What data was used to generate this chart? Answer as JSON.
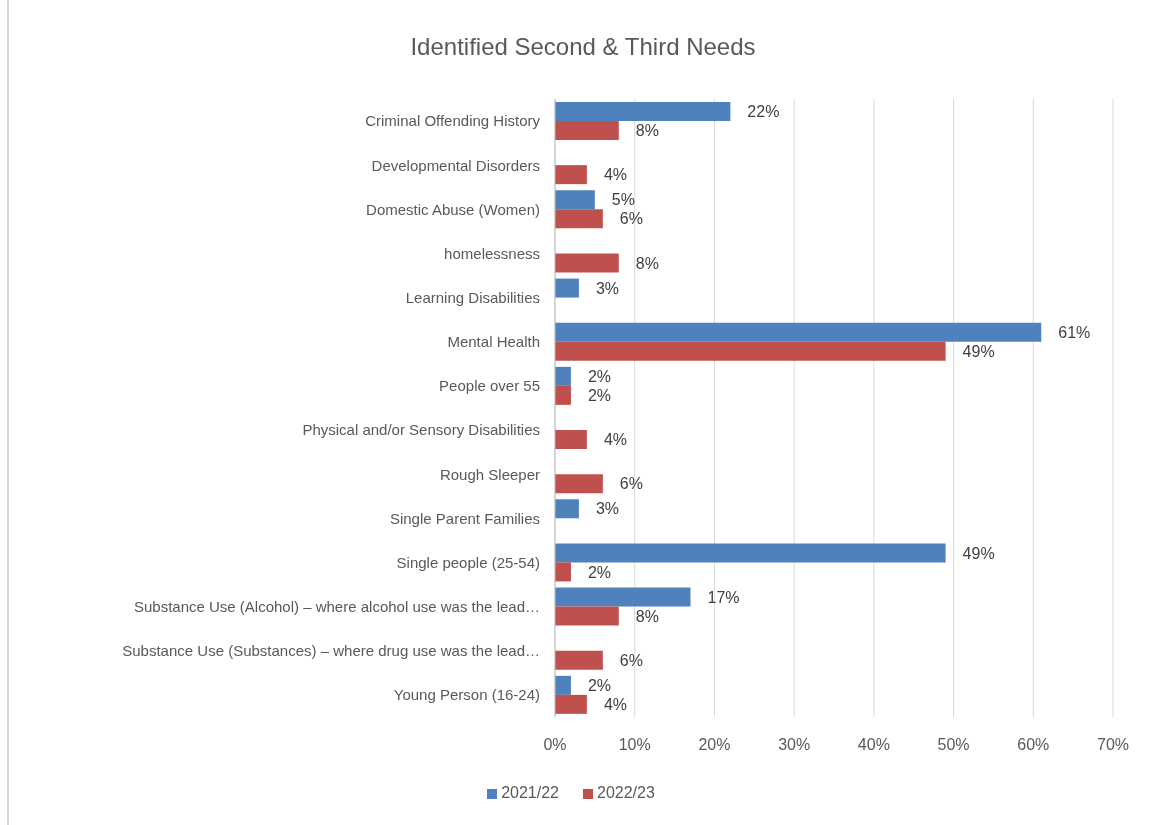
{
  "chart_data": {
    "type": "bar",
    "orientation": "horizontal",
    "title": "Identified Second & Third Needs",
    "categories": [
      "Criminal Offending History",
      "Developmental Disorders",
      "Domestic Abuse (Women)",
      "homelessness",
      "Learning Disabilities",
      "Mental Health",
      "People over 55",
      "Physical and/or Sensory Disabilities",
      "Rough Sleeper",
      "Single Parent Families",
      "Single people (25-54)",
      "Substance Use (Alcohol) – where alcohol use was the lead…",
      "Substance Use (Substances) – where drug use was the lead…",
      "Young Person (16-24)"
    ],
    "series": [
      {
        "name": "2021/22",
        "color": "#4f81bd",
        "values": [
          22,
          null,
          5,
          null,
          3,
          61,
          2,
          null,
          null,
          3,
          49,
          17,
          null,
          2
        ],
        "value_labels": [
          "22%",
          null,
          "5%",
          null,
          "3%",
          "61%",
          "2%",
          null,
          null,
          "3%",
          "49%",
          "17%",
          null,
          "2%"
        ]
      },
      {
        "name": "2022/23",
        "color": "#c0504d",
        "values": [
          8,
          4,
          6,
          8,
          null,
          49,
          2,
          4,
          6,
          null,
          2,
          8,
          6,
          4
        ],
        "value_labels": [
          "8%",
          "4%",
          "6%",
          "8%",
          null,
          "49%",
          "2%",
          "4%",
          "6%",
          null,
          "2%",
          "8%",
          "6%",
          "4%"
        ]
      }
    ],
    "xlim": [
      0,
      70
    ],
    "xticks": [
      {
        "value": 0,
        "label": "0%"
      },
      {
        "value": 10,
        "label": "10%"
      },
      {
        "value": 20,
        "label": "20%"
      },
      {
        "value": 30,
        "label": "30%"
      },
      {
        "value": 40,
        "label": "40%"
      },
      {
        "value": 50,
        "label": "50%"
      },
      {
        "value": 60,
        "label": "60%"
      },
      {
        "value": 70,
        "label": "70%"
      }
    ],
    "grid": "x",
    "legend": "bottom"
  }
}
